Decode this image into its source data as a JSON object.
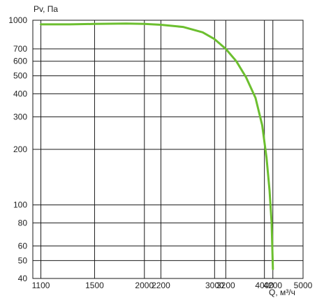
{
  "chart_data": {
    "type": "line",
    "xlabel": "Q, м³/ч",
    "ylabel": "Pv, Па",
    "x_scale": "log",
    "y_scale": "log",
    "xlim": [
      1050,
      5000
    ],
    "ylim": [
      40,
      1000
    ],
    "x_ticks": [
      1100,
      1500,
      2000,
      2200,
      3000,
      3200,
      4000,
      4200,
      5000
    ],
    "x_tick_labels": [
      "1100",
      "1500",
      "2000",
      "2200",
      "3000",
      "3200",
      "4000",
      "4200",
      "5000"
    ],
    "y_ticks": [
      40,
      50,
      60,
      80,
      100,
      200,
      300,
      400,
      500,
      600,
      700,
      1000
    ],
    "y_tick_labels": [
      "40",
      "50",
      "60",
      "80",
      "100",
      "200",
      "300",
      "400",
      "500",
      "600",
      "700",
      "1000"
    ],
    "grid": true,
    "series": [
      {
        "color": "#6cbf2f",
        "x": [
          1100,
          1300,
          1500,
          1800,
          2000,
          2200,
          2500,
          2800,
          3000,
          3200,
          3400,
          3600,
          3800,
          3950,
          4050,
          4120,
          4170,
          4200
        ],
        "y": [
          950,
          950,
          955,
          960,
          955,
          945,
          920,
          860,
          790,
          700,
          600,
          490,
          380,
          270,
          180,
          120,
          80,
          45
        ]
      }
    ]
  }
}
